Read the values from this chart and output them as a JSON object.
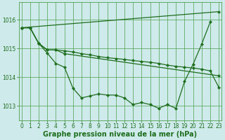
{
  "xlabel": "Graphe pression niveau de la mer (hPa)",
  "bg_color": "#ceeaea",
  "grid_color": "#4d9e4d",
  "line_color": "#1e6e1e",
  "marker": "D",
  "marker_size": 2.2,
  "line_width": 0.9,
  "ylim": [
    1012.5,
    1016.6
  ],
  "yticks": [
    1013,
    1014,
    1015,
    1016
  ],
  "xlim": [
    -0.3,
    23.3
  ],
  "xticks": [
    0,
    1,
    2,
    3,
    4,
    5,
    6,
    7,
    8,
    9,
    10,
    11,
    12,
    13,
    14,
    15,
    16,
    17,
    18,
    19,
    20,
    21,
    22,
    23
  ],
  "tick_fontsize": 5.5,
  "label_fontsize": 7,
  "line1_x": [
    0,
    1,
    2,
    3,
    4,
    5,
    6,
    7,
    8,
    9,
    10,
    11,
    12,
    13,
    14,
    15,
    16,
    17,
    18,
    19,
    20,
    21,
    22
  ],
  "line1_y": [
    1015.72,
    1015.72,
    1015.18,
    1014.84,
    1014.48,
    1014.35,
    1013.62,
    1013.28,
    1013.35,
    1013.42,
    1013.38,
    1013.38,
    1013.28,
    1013.05,
    1013.12,
    1013.05,
    1012.92,
    1013.05,
    1012.92,
    1013.85,
    1014.45,
    1015.15,
    1015.92
  ],
  "line2_x": [
    0,
    23
  ],
  "line2_y": [
    1015.72,
    1016.28
  ],
  "line3_x": [
    0,
    1,
    2,
    3,
    4,
    5,
    6,
    7,
    8,
    9,
    10,
    11,
    12,
    13,
    14,
    15,
    16,
    17,
    18,
    19,
    20,
    21,
    22,
    23
  ],
  "line3_y": [
    1015.72,
    1015.72,
    1015.18,
    1014.95,
    1014.95,
    1014.92,
    1014.88,
    1014.82,
    1014.78,
    1014.72,
    1014.68,
    1014.65,
    1014.62,
    1014.58,
    1014.55,
    1014.52,
    1014.48,
    1014.42,
    1014.38,
    1014.35,
    1014.32,
    1014.28,
    1014.22,
    1013.65
  ],
  "line4_x": [
    0,
    1,
    2,
    3,
    4,
    5,
    23
  ],
  "line4_y": [
    1015.72,
    1015.72,
    1015.18,
    1014.95,
    1014.95,
    1014.82,
    1014.05
  ]
}
